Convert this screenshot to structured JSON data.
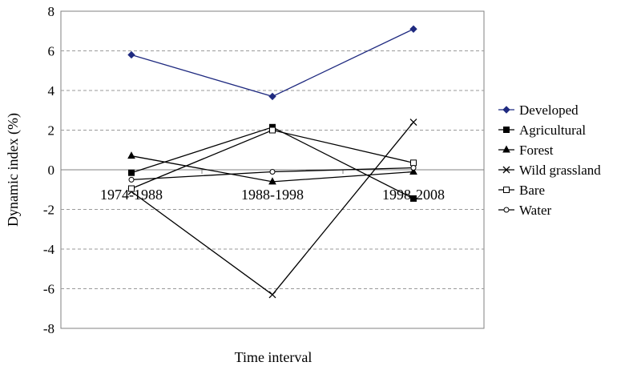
{
  "chart_data": {
    "type": "line",
    "title": "",
    "xlabel": "Time interval",
    "ylabel": "Dynamic index (%)",
    "categories": [
      "1974-1988",
      "1988-1998",
      "1998-2008"
    ],
    "ylim": [
      -8,
      8
    ],
    "yticks": [
      "8",
      "6",
      "4",
      "2",
      "0",
      "-2",
      "-4",
      "-6",
      "-8"
    ],
    "grid": true,
    "legend_position": "right",
    "series": [
      {
        "name": "Developed",
        "values": [
          5.8,
          3.7,
          7.1
        ],
        "marker": "diamond",
        "color": "#1f2a80"
      },
      {
        "name": "Agricultural",
        "values": [
          -0.15,
          2.15,
          -1.45
        ],
        "marker": "square",
        "color": "#000000"
      },
      {
        "name": "Forest",
        "values": [
          0.7,
          -0.6,
          -0.1
        ],
        "marker": "triangle",
        "color": "#000000"
      },
      {
        "name": "Wild grassland",
        "values": [
          -1.1,
          -6.3,
          2.4
        ],
        "marker": "x",
        "color": "#000000"
      },
      {
        "name": "Bare",
        "values": [
          -0.95,
          2.0,
          0.35
        ],
        "marker": "square-open",
        "color": "#000000"
      },
      {
        "name": "Water",
        "values": [
          -0.5,
          -0.1,
          0.1
        ],
        "marker": "circle-open",
        "color": "#000000"
      }
    ]
  }
}
